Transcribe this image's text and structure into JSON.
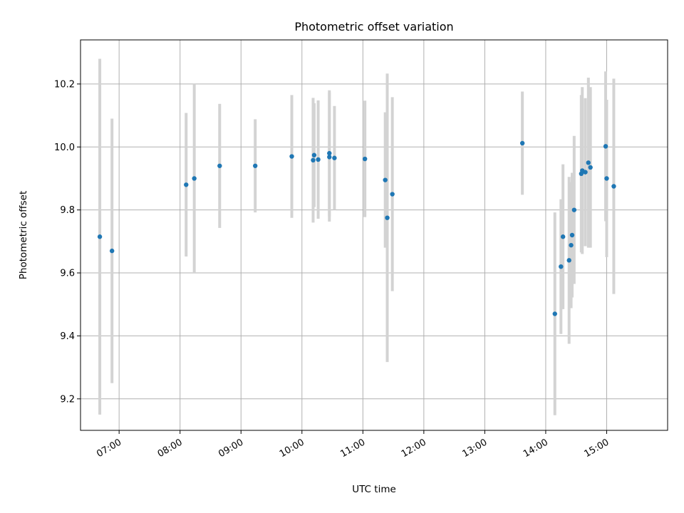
{
  "chart_data": {
    "type": "scatter",
    "title": "Photometric offset variation",
    "xlabel": "UTC time",
    "ylabel": "Photometric offset",
    "x_unit": "UTC time (HH:MM)",
    "xlim": [
      "06:22",
      "16:00"
    ],
    "ylim": [
      9.1,
      10.34
    ],
    "x_ticks": [
      "07:00",
      "08:00",
      "09:00",
      "10:00",
      "11:00",
      "12:00",
      "13:00",
      "14:00",
      "15:00"
    ],
    "y_ticks": [
      9.2,
      9.4,
      9.6,
      9.8,
      10.0,
      10.2
    ],
    "grid": true,
    "series": [
      {
        "color": "#1f77b4",
        "errorbar_color": "#d3d3d3",
        "points": [
          {
            "x": "06:41",
            "y": 9.715,
            "yerr": 0.565
          },
          {
            "x": "06:53",
            "y": 9.67,
            "yerr": 0.42
          },
          {
            "x": "08:06",
            "y": 9.88,
            "yerr": 0.228
          },
          {
            "x": "08:14",
            "y": 9.9,
            "yerr": 0.302
          },
          {
            "x": "08:39",
            "y": 9.94,
            "yerr": 0.197
          },
          {
            "x": "09:14",
            "y": 9.94,
            "yerr": 0.148
          },
          {
            "x": "09:50",
            "y": 9.97,
            "yerr": 0.195
          },
          {
            "x": "10:11",
            "y": 9.958,
            "yerr": 0.198
          },
          {
            "x": "10:12",
            "y": 9.974,
            "yerr": 0.165
          },
          {
            "x": "10:16",
            "y": 9.96,
            "yerr": 0.188
          },
          {
            "x": "10:27",
            "y": 9.98,
            "yerr": 0.2
          },
          {
            "x": "10:27",
            "y": 9.968,
            "yerr": 0.205
          },
          {
            "x": "10:32",
            "y": 9.965,
            "yerr": 0.165
          },
          {
            "x": "11:02",
            "y": 9.962,
            "yerr": 0.185
          },
          {
            "x": "11:22",
            "y": 9.895,
            "yerr": 0.215
          },
          {
            "x": "11:24",
            "y": 9.775,
            "yerr": 0.458
          },
          {
            "x": "11:29",
            "y": 9.85,
            "yerr": 0.308
          },
          {
            "x": "13:37",
            "y": 10.012,
            "yerr": 0.164
          },
          {
            "x": "14:09",
            "y": 9.47,
            "yerr": 0.322
          },
          {
            "x": "14:15",
            "y": 9.62,
            "yerr": 0.214
          },
          {
            "x": "14:17",
            "y": 9.715,
            "yerr": 0.23
          },
          {
            "x": "14:23",
            "y": 9.64,
            "yerr": 0.265
          },
          {
            "x": "14:25",
            "y": 9.688,
            "yerr": 0.2
          },
          {
            "x": "14:26",
            "y": 9.72,
            "yerr": 0.198
          },
          {
            "x": "14:28",
            "y": 9.8,
            "yerr": 0.235
          },
          {
            "x": "14:35",
            "y": 9.915,
            "yerr": 0.25
          },
          {
            "x": "14:36",
            "y": 9.925,
            "yerr": 0.265
          },
          {
            "x": "14:39",
            "y": 9.92,
            "yerr": 0.235
          },
          {
            "x": "14:42",
            "y": 9.95,
            "yerr": 0.27
          },
          {
            "x": "14:44",
            "y": 9.935,
            "yerr": 0.255
          },
          {
            "x": "14:59",
            "y": 10.002,
            "yerr": 0.238
          },
          {
            "x": "15:00",
            "y": 9.9,
            "yerr": 0.25
          },
          {
            "x": "15:07",
            "y": 9.875,
            "yerr": 0.342
          }
        ]
      }
    ]
  }
}
